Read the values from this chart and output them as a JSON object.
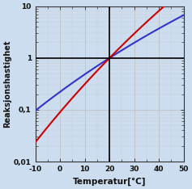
{
  "title": "",
  "xlabel": "Temperatur[°C]",
  "ylabel": "Reaksjonshastighet",
  "xmin": -10,
  "xmax": 50,
  "ymin": 0.01,
  "ymax": 10,
  "ref_temp": 20,
  "ref_val": 1.0,
  "blue_Ea": 50000,
  "red_Ea": 80000,
  "R": 8.314,
  "line_color_blue": "#3333cc",
  "line_color_red": "#cc0000",
  "line_width": 1.5,
  "background_color": "#ccddf0",
  "grid_major_color": "#bbbbbb",
  "grid_minor_color": "#cccccc",
  "vline_x": 20,
  "hline_y": 1.0,
  "xticks": [
    -10,
    0,
    10,
    20,
    30,
    40,
    50
  ],
  "ytick_labels": [
    "0,01",
    "0,1",
    "1",
    "10"
  ],
  "ytick_values": [
    0.01,
    0.1,
    1,
    10
  ],
  "xlabel_fontsize": 7.5,
  "ylabel_fontsize": 7,
  "tick_fontsize": 6.5
}
